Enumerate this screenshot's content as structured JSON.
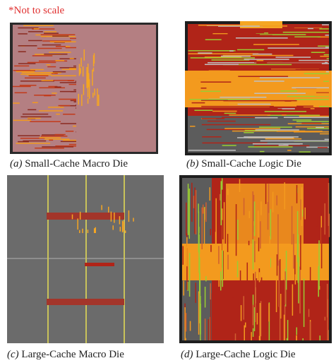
{
  "note": "*Not to scale",
  "panels": [
    {
      "label": "(a)",
      "caption": "Small-Cache Macro Die"
    },
    {
      "label": "(b)",
      "caption": "Small-Cache Logic Die"
    },
    {
      "label": "(c)",
      "caption": "Large-Cache Macro Die"
    },
    {
      "label": "(d)",
      "caption": "Large-Cache Logic Die"
    }
  ]
}
